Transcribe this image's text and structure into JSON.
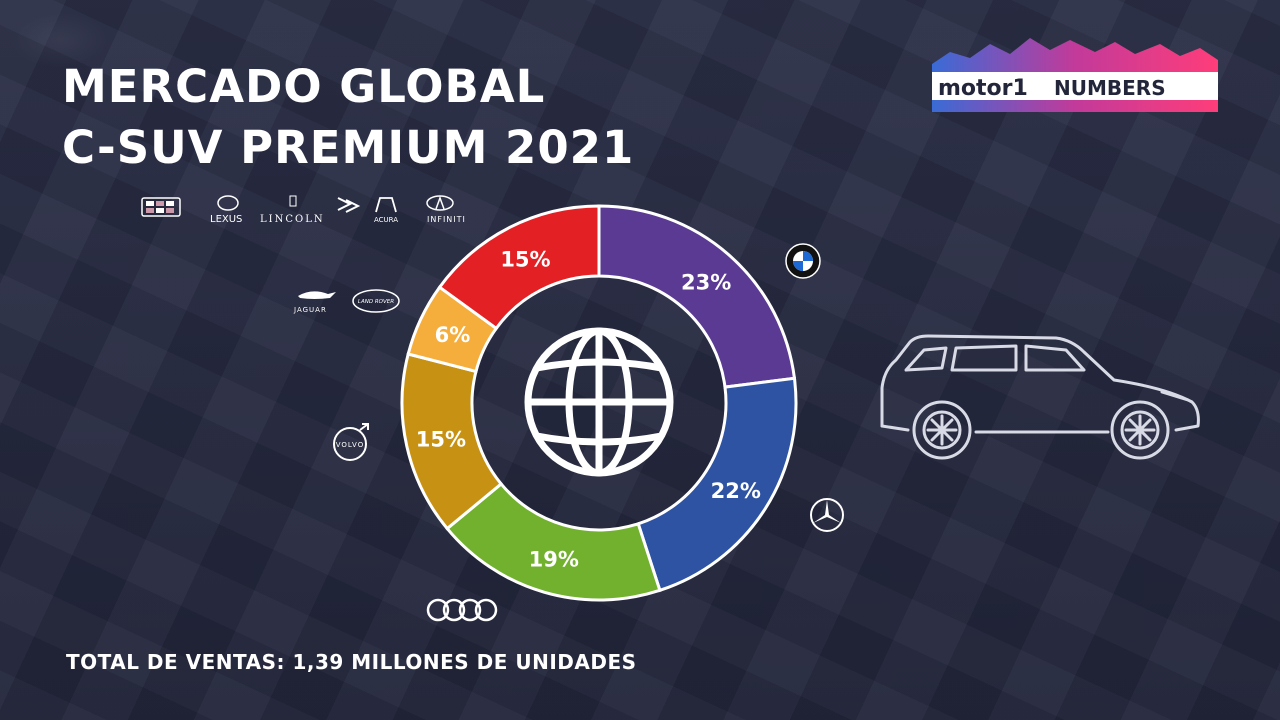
{
  "title": {
    "line1": "MERCADO GLOBAL",
    "line2": "C-SUV PREMIUM 2021"
  },
  "footer": {
    "total_label": "TOTAL DE VENTAS: 1,39 MILLONES DE UNIDADES"
  },
  "source_logo": {
    "brand": "motor1",
    "suffix": "NUMBERS",
    "icon": "motor1-numbers-logo"
  },
  "brand_logos": {
    "others_group": [
      "cadillac-logo",
      "lexus-logo",
      "lincoln-logo",
      "ds-logo",
      "acura-logo",
      "infiniti-logo"
    ],
    "others_text": {
      "lexus": "LEXUS",
      "lincoln": "LINCOLN",
      "acura": "ACURA",
      "infiniti": "INFINITI"
    },
    "jlr_group": [
      "jaguar-logo",
      "land-rover-logo"
    ],
    "jlr_text": {
      "jaguar": "JAGUAR",
      "land_rover": "LAND ROVER"
    },
    "volvo_text": "VOLVO"
  },
  "chart_data": {
    "type": "pie",
    "style": "donut",
    "center_icon": "globe-icon",
    "decoration_icon": "suv-car-icon",
    "slices": [
      {
        "value": 23,
        "label": "23%",
        "color": "#5b3a94",
        "logo": "bmw-logo"
      },
      {
        "value": 22,
        "label": "22%",
        "color": "#2f53a3",
        "logo": "mercedes-benz-logo"
      },
      {
        "value": 19,
        "label": "19%",
        "color": "#72b12e",
        "logo": "audi-logo"
      },
      {
        "value": 15,
        "label": "15%",
        "color": "#c79214",
        "logo": "volvo-logo"
      },
      {
        "value": 6,
        "label": "6%",
        "color": "#f5ad3c",
        "logo": "jaguar-land-rover-logo"
      },
      {
        "value": 15,
        "label": "15%",
        "color": "#e32024",
        "logo": "others-logo"
      }
    ]
  }
}
